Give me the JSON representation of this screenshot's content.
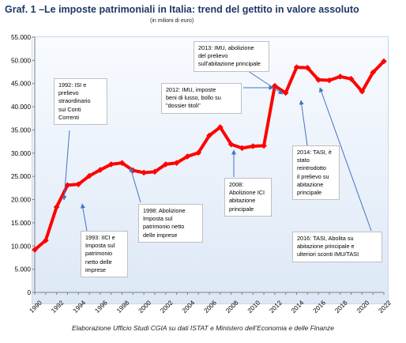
{
  "chart_data": {
    "type": "line",
    "title": "Graf. 1 –Le imposte patrimoniali in Italia: trend del gettito in valore assoluto",
    "subtitle": "(in milioni di euro)",
    "x": [
      1990,
      1991,
      1992,
      1993,
      1994,
      1995,
      1996,
      1997,
      1998,
      1999,
      2000,
      2001,
      2002,
      2003,
      2004,
      2005,
      2006,
      2007,
      2008,
      2009,
      2010,
      2011,
      2012,
      2013,
      2014,
      2015,
      2016,
      2017,
      2018,
      2019,
      2020,
      2021,
      2022
    ],
    "series": [
      {
        "values": [
          9200,
          11200,
          18400,
          23100,
          23300,
          25100,
          26400,
          27600,
          27900,
          26300,
          25800,
          26000,
          27600,
          27900,
          29300,
          30100,
          33800,
          35600,
          31900,
          31100,
          31500,
          31600,
          44500,
          43000,
          48500,
          48400,
          45800,
          45700,
          46500,
          46000,
          43300,
          47400,
          49800
        ]
      }
    ],
    "xticks": [
      "1990",
      "1992",
      "1994",
      "1996",
      "1998",
      "2000",
      "2002",
      "2004",
      "2006",
      "2008",
      "2010",
      "2012",
      "2014",
      "2016",
      "2018",
      "2020",
      "2022"
    ],
    "yticks": [
      "0",
      "5.000",
      "10.000",
      "15.000",
      "20.000",
      "25.000",
      "30.000",
      "35.000",
      "40.000",
      "45.000",
      "50.000",
      "55.000"
    ],
    "xlim": [
      1990,
      2022
    ],
    "ylim": [
      0,
      55000
    ],
    "line_color": "#ff0000",
    "grid": false,
    "annotations": [
      {
        "lines": [
          "1992: ISI e",
          "prelievo",
          "straordinario",
          "sui Conti",
          "Correnti"
        ]
      },
      {
        "lines": [
          "1993: IICI e",
          "Imposta sul",
          "patrimonio",
          "netto delle",
          "imprese"
        ]
      },
      {
        "lines": [
          "1998: Abolizione",
          "Imposta sul",
          "patrimonio netto",
          "delle imprese"
        ]
      },
      {
        "lines": [
          "2012: IMU, imposte",
          "beni di lusso,  bollo su",
          "\"dossier  titoli\""
        ]
      },
      {
        "lines": [
          "2013: IMU, abolizione",
          "del prelievo",
          "sull'abitazione principale"
        ]
      },
      {
        "lines": [
          "2008:",
          "Abolizione ICI",
          "abitazione",
          "principale"
        ]
      },
      {
        "lines": [
          "2014: TASI, è",
          "stato",
          "reintrodotto",
          "il prelievo su",
          "abitazione",
          "principale"
        ]
      },
      {
        "lines": [
          "2016: TASI, Abolita su",
          "abitazione principale e",
          "ulteriori sconti IMU/TASI"
        ]
      }
    ],
    "source": "Elaborazione Ufficio Studi CGIA su dati ISTAT e Ministero dell’Economia e delle Finanze"
  }
}
